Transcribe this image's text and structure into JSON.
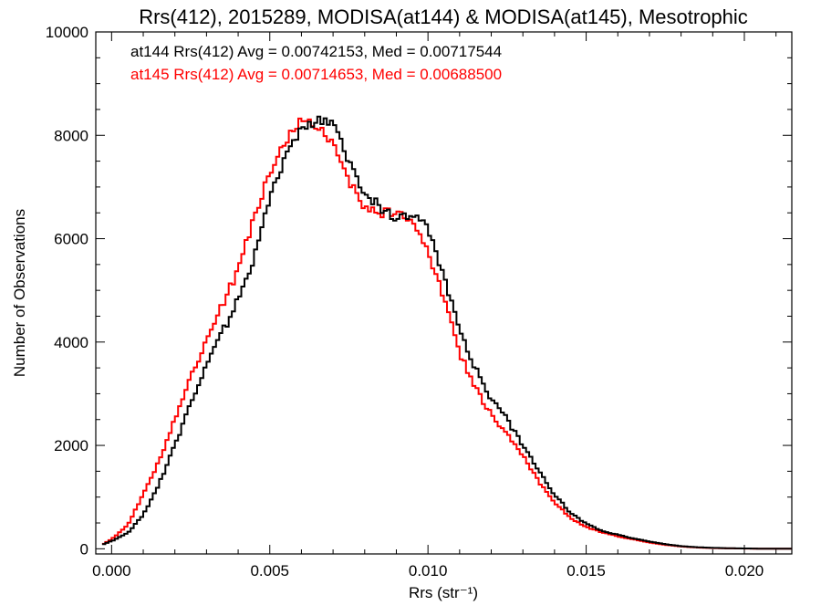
{
  "chart_data": {
    "type": "line",
    "title": "Rrs(412), 2015289, MODISA(at144) & MODISA(at145), Mesotrophic",
    "xlabel": "Rrs (str⁻¹)",
    "ylabel": "Number of Observations",
    "xlim": [
      -0.0005,
      0.0215
    ],
    "ylim": [
      -100,
      10000
    ],
    "x_ticks": [
      0.0,
      0.005,
      0.01,
      0.015,
      0.02
    ],
    "x_tick_labels": [
      "0.000",
      "0.005",
      "0.010",
      "0.015",
      "0.020"
    ],
    "y_ticks": [
      0,
      2000,
      4000,
      6000,
      8000,
      10000
    ],
    "y_tick_labels": [
      "0",
      "2000",
      "4000",
      "6000",
      "8000",
      "10000"
    ],
    "grid": false,
    "step_style": "histogram",
    "series": [
      {
        "name": "at144",
        "color": "#000000",
        "annotation": "at144 Rrs(412) Avg = 0.00742153, Med = 0.00717544",
        "points": [
          [
            -0.0003,
            80
          ],
          [
            0.0,
            150
          ],
          [
            0.0005,
            300
          ],
          [
            0.001,
            650
          ],
          [
            0.0015,
            1250
          ],
          [
            0.002,
            2000
          ],
          [
            0.0025,
            2800
          ],
          [
            0.003,
            3600
          ],
          [
            0.0035,
            4200
          ],
          [
            0.004,
            4800
          ],
          [
            0.0045,
            5600
          ],
          [
            0.005,
            6800
          ],
          [
            0.0055,
            7600
          ],
          [
            0.006,
            8100
          ],
          [
            0.0065,
            8300
          ],
          [
            0.007,
            8200
          ],
          [
            0.0075,
            7500
          ],
          [
            0.008,
            6900
          ],
          [
            0.0085,
            6600
          ],
          [
            0.009,
            6400
          ],
          [
            0.0095,
            6450
          ],
          [
            0.01,
            6200
          ],
          [
            0.0105,
            5300
          ],
          [
            0.011,
            4200
          ],
          [
            0.0115,
            3500
          ],
          [
            0.012,
            2900
          ],
          [
            0.0125,
            2500
          ],
          [
            0.013,
            2000
          ],
          [
            0.0135,
            1500
          ],
          [
            0.014,
            1050
          ],
          [
            0.0145,
            700
          ],
          [
            0.015,
            480
          ],
          [
            0.0155,
            350
          ],
          [
            0.016,
            270
          ],
          [
            0.0165,
            200
          ],
          [
            0.017,
            140
          ],
          [
            0.0175,
            90
          ],
          [
            0.018,
            50
          ],
          [
            0.0185,
            30
          ],
          [
            0.019,
            18
          ],
          [
            0.0195,
            10
          ],
          [
            0.02,
            6
          ],
          [
            0.0205,
            3
          ],
          [
            0.021,
            1
          ],
          [
            0.0215,
            0
          ]
        ]
      },
      {
        "name": "at145",
        "color": "#ff0000",
        "annotation": "at145 Rrs(412) Avg = 0.00714653, Med = 0.00688500",
        "points": [
          [
            -0.0003,
            80
          ],
          [
            0.0,
            180
          ],
          [
            0.0005,
            450
          ],
          [
            0.001,
            1050
          ],
          [
            0.0015,
            1700
          ],
          [
            0.002,
            2500
          ],
          [
            0.0025,
            3300
          ],
          [
            0.003,
            4000
          ],
          [
            0.0035,
            4700
          ],
          [
            0.004,
            5400
          ],
          [
            0.0045,
            6400
          ],
          [
            0.005,
            7300
          ],
          [
            0.0055,
            7900
          ],
          [
            0.006,
            8300
          ],
          [
            0.0065,
            8200
          ],
          [
            0.007,
            7800
          ],
          [
            0.0075,
            7100
          ],
          [
            0.008,
            6600
          ],
          [
            0.0085,
            6500
          ],
          [
            0.009,
            6500
          ],
          [
            0.0095,
            6300
          ],
          [
            0.01,
            5800
          ],
          [
            0.0105,
            4800
          ],
          [
            0.011,
            3800
          ],
          [
            0.0115,
            3100
          ],
          [
            0.012,
            2600
          ],
          [
            0.0125,
            2200
          ],
          [
            0.013,
            1800
          ],
          [
            0.0135,
            1300
          ],
          [
            0.014,
            900
          ],
          [
            0.0145,
            600
          ],
          [
            0.015,
            420
          ],
          [
            0.0155,
            320
          ],
          [
            0.016,
            240
          ],
          [
            0.0165,
            180
          ],
          [
            0.017,
            120
          ],
          [
            0.0175,
            75
          ],
          [
            0.018,
            45
          ],
          [
            0.0185,
            25
          ],
          [
            0.019,
            14
          ],
          [
            0.0195,
            8
          ],
          [
            0.02,
            5
          ],
          [
            0.0205,
            2
          ],
          [
            0.021,
            1
          ],
          [
            0.0215,
            0
          ]
        ]
      }
    ]
  }
}
